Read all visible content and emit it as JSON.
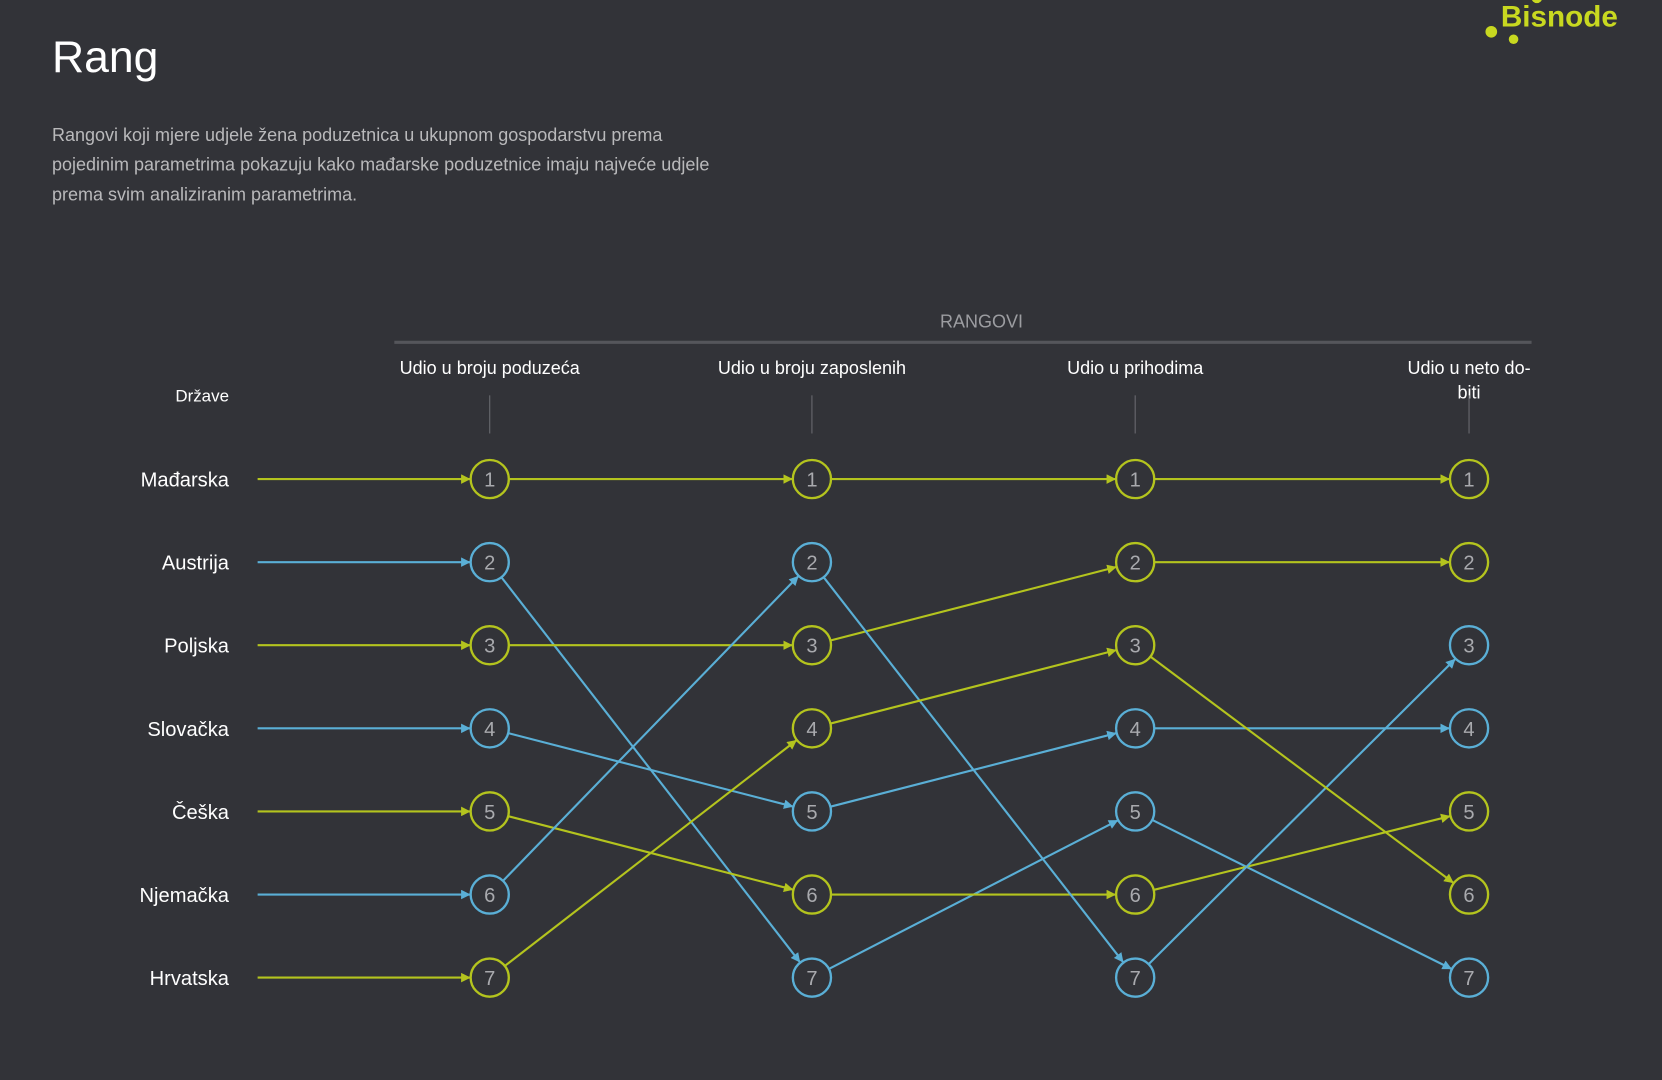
{
  "header": {
    "title": "Rang",
    "description_lines": [
      "Rangovi koji mjere udjele žena poduzetnica u ukupnom gospodarstvu prema",
      "pojedinim parametrima pokazuju kako mađarske poduzetnice imaju najveće udjele",
      "prema svim analiziranim parametrima."
    ]
  },
  "logo": {
    "text": "Bisnode",
    "color": "#c8d820"
  },
  "colors": {
    "background": "#323338",
    "yellow": "#b4c41e",
    "blue": "#5aafd6",
    "text": "#ffffff",
    "muted": "#b9b9bb",
    "rule": "#55565b"
  },
  "chart_data": {
    "type": "bump",
    "group_label": "RANGOVI",
    "row_header": "Države",
    "columns": [
      {
        "label_lines": [
          "Udio u broju poduzeća"
        ]
      },
      {
        "label_lines": [
          "Udio u broju zaposlenih"
        ]
      },
      {
        "label_lines": [
          "Udio u prihodima"
        ]
      },
      {
        "label_lines": [
          "Udio u neto do-",
          "biti"
        ]
      }
    ],
    "series": [
      {
        "name": "Mađarska",
        "color": "yellow",
        "ranks": [
          1,
          1,
          1,
          1
        ]
      },
      {
        "name": "Austrija",
        "color": "blue",
        "ranks": [
          2,
          7,
          5,
          7
        ]
      },
      {
        "name": "Poljska",
        "color": "yellow",
        "ranks": [
          3,
          3,
          2,
          2
        ]
      },
      {
        "name": "Slovačka",
        "color": "blue",
        "ranks": [
          4,
          5,
          4,
          4
        ]
      },
      {
        "name": "Češka",
        "color": "yellow",
        "ranks": [
          5,
          6,
          6,
          5
        ]
      },
      {
        "name": "Njemačka",
        "color": "blue",
        "ranks": [
          6,
          2,
          7,
          3
        ]
      },
      {
        "name": "Hrvatska",
        "color": "yellow",
        "ranks": [
          7,
          4,
          3,
          6
        ]
      }
    ]
  }
}
